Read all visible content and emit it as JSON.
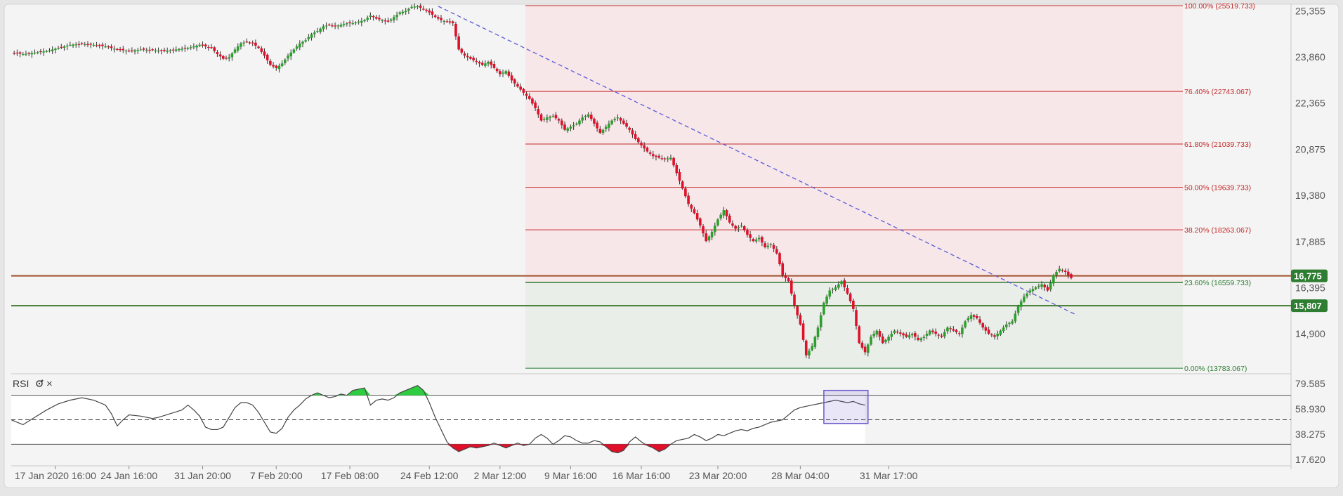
{
  "chart_data": {
    "type": "candlestick",
    "instrument": "",
    "y_axis": {
      "ticks": [
        25355,
        23860,
        22365,
        20875,
        19380,
        17885,
        16395,
        14900
      ],
      "labels": [
        "25,355",
        "23,860",
        "22,365",
        "20,875",
        "19,380",
        "17,885",
        "16,395",
        "14,900"
      ],
      "range": [
        13650,
        25520
      ]
    },
    "x_axis": {
      "labels": [
        "17 Jan 2020 16:00",
        "24 Jan 16:00",
        "31 Jan 20:00",
        "7 Feb 20:00",
        "17 Feb 08:00",
        "24 Feb 12:00",
        "2 Mar 12:00",
        "9 Mar 16:00",
        "16 Mar 16:00",
        "23 Mar 20:00",
        "28 Mar 04:00",
        "31 Mar 17:00"
      ]
    },
    "fibonacci": {
      "levels": [
        {
          "label": "100.00% (25519.733)",
          "pct": 1.0,
          "price": 25519.733
        },
        {
          "label": "76.40% (22743.067)",
          "pct": 0.764,
          "price": 22743.067
        },
        {
          "label": "61.80% (21039.733)",
          "pct": 0.618,
          "price": 21039.733
        },
        {
          "label": "50.00% (19639.733)",
          "pct": 0.5,
          "price": 19639.733
        },
        {
          "label": "38.20% (18263.067)",
          "pct": 0.382,
          "price": 18263.067
        },
        {
          "label": "23.60% (16559.733)",
          "pct": 0.236,
          "price": 16559.733
        },
        {
          "label": "0.00% (13783.067)",
          "pct": 0.0,
          "price": 13783.067
        }
      ],
      "color_upper": "#c62828",
      "color_lower": "#2e7d32"
    },
    "horizontal_lines": [
      {
        "label": "16,775",
        "price": 16775,
        "color": "#a0522d",
        "badge_color": "#2e7d32"
      },
      {
        "label": "15,807",
        "price": 15807,
        "color": "#3f7a2e",
        "badge_color": "#2e7d32"
      }
    ],
    "trendline": {
      "color": "#5b5bd6",
      "style": "dashed"
    },
    "candles": {
      "up_color": "#2ca02c",
      "down_color": "#e0102a",
      "path": [
        [
          0,
          24000
        ],
        [
          4,
          23950
        ],
        [
          8,
          24000
        ],
        [
          12,
          24050
        ],
        [
          16,
          24150
        ],
        [
          20,
          24250
        ],
        [
          24,
          24280
        ],
        [
          28,
          24250
        ],
        [
          32,
          24200
        ],
        [
          36,
          24100
        ],
        [
          40,
          24050
        ],
        [
          44,
          24100
        ],
        [
          48,
          24080
        ],
        [
          52,
          24050
        ],
        [
          56,
          24100
        ],
        [
          60,
          24150
        ],
        [
          64,
          24250
        ],
        [
          68,
          24150
        ],
        [
          70,
          23950
        ],
        [
          72,
          23800
        ],
        [
          74,
          23850
        ],
        [
          76,
          24100
        ],
        [
          78,
          24300
        ],
        [
          80,
          24350
        ],
        [
          82,
          24300
        ],
        [
          84,
          24150
        ],
        [
          86,
          23900
        ],
        [
          88,
          23600
        ],
        [
          90,
          23500
        ],
        [
          92,
          23650
        ],
        [
          94,
          23900
        ],
        [
          96,
          24100
        ],
        [
          98,
          24300
        ],
        [
          100,
          24400
        ],
        [
          102,
          24600
        ],
        [
          104,
          24700
        ],
        [
          106,
          24850
        ],
        [
          108,
          24900
        ],
        [
          110,
          24850
        ],
        [
          112,
          24900
        ],
        [
          114,
          24950
        ],
        [
          116,
          24950
        ],
        [
          118,
          25000
        ],
        [
          120,
          25050
        ],
        [
          122,
          25200
        ],
        [
          124,
          25100
        ],
        [
          126,
          25050
        ],
        [
          128,
          25000
        ],
        [
          130,
          25150
        ],
        [
          132,
          25300
        ],
        [
          134,
          25350
        ],
        [
          136,
          25480
        ],
        [
          138,
          25500
        ],
        [
          140,
          25400
        ],
        [
          142,
          25300
        ],
        [
          144,
          25150
        ],
        [
          146,
          25050
        ],
        [
          150,
          24950
        ],
        [
          152,
          24100
        ],
        [
          154,
          23900
        ],
        [
          156,
          23800
        ],
        [
          158,
          23700
        ],
        [
          160,
          23600
        ],
        [
          162,
          23700
        ],
        [
          164,
          23500
        ],
        [
          166,
          23300
        ],
        [
          168,
          23400
        ],
        [
          170,
          23100
        ],
        [
          172,
          22900
        ],
        [
          174,
          22700
        ],
        [
          176,
          22500
        ],
        [
          178,
          22200
        ],
        [
          180,
          21800
        ],
        [
          182,
          21900
        ],
        [
          184,
          21950
        ],
        [
          186,
          21800
        ],
        [
          188,
          21500
        ],
        [
          190,
          21600
        ],
        [
          192,
          21700
        ],
        [
          194,
          21900
        ],
        [
          196,
          22000
        ],
        [
          198,
          21700
        ],
        [
          200,
          21400
        ],
        [
          202,
          21600
        ],
        [
          204,
          21800
        ],
        [
          206,
          21900
        ],
        [
          208,
          21700
        ],
        [
          210,
          21500
        ],
        [
          212,
          21200
        ],
        [
          214,
          21000
        ],
        [
          216,
          20800
        ],
        [
          218,
          20650
        ],
        [
          220,
          20600
        ],
        [
          222,
          20550
        ],
        [
          224,
          20600
        ],
        [
          230,
          19100
        ],
        [
          232,
          18800
        ],
        [
          234,
          18400
        ],
        [
          236,
          17900
        ],
        [
          238,
          18200
        ],
        [
          240,
          18600
        ],
        [
          242,
          18900
        ],
        [
          244,
          18500
        ],
        [
          246,
          18300
        ],
        [
          248,
          18400
        ],
        [
          250,
          18100
        ],
        [
          252,
          17900
        ],
        [
          254,
          18000
        ],
        [
          256,
          17700
        ],
        [
          258,
          17800
        ],
        [
          260,
          17500
        ],
        [
          262,
          16800
        ],
        [
          264,
          16600
        ],
        [
          266,
          15800
        ],
        [
          268,
          15200
        ],
        [
          270,
          14200
        ],
        [
          272,
          14500
        ],
        [
          274,
          15100
        ],
        [
          276,
          15900
        ],
        [
          278,
          16300
        ],
        [
          280,
          16400
        ],
        [
          282,
          16600
        ],
        [
          284,
          16200
        ],
        [
          286,
          15700
        ],
        [
          288,
          14600
        ],
        [
          290,
          14300
        ],
        [
          292,
          14800
        ],
        [
          294,
          15000
        ],
        [
          296,
          14600
        ],
        [
          298,
          14800
        ],
        [
          300,
          15000
        ],
        [
          302,
          14900
        ],
        [
          304,
          14800
        ],
        [
          306,
          14900
        ],
        [
          308,
          14700
        ],
        [
          310,
          14800
        ],
        [
          312,
          15000
        ],
        [
          314,
          14900
        ],
        [
          316,
          14800
        ],
        [
          318,
          15100
        ],
        [
          320,
          15000
        ],
        [
          322,
          14900
        ],
        [
          324,
          15300
        ],
        [
          326,
          15500
        ],
        [
          328,
          15400
        ],
        [
          330,
          15100
        ],
        [
          332,
          14900
        ],
        [
          334,
          14800
        ],
        [
          336,
          15000
        ],
        [
          338,
          15200
        ],
        [
          340,
          15300
        ],
        [
          342,
          15800
        ],
        [
          344,
          16100
        ],
        [
          346,
          16300
        ],
        [
          348,
          16400
        ],
        [
          350,
          16500
        ],
        [
          352,
          16300
        ],
        [
          354,
          16800
        ],
        [
          356,
          17000
        ],
        [
          358,
          16900
        ],
        [
          360,
          16700
        ]
      ]
    },
    "rsi": {
      "label": "RSI",
      "y_ticks": [
        79.585,
        58.93,
        38.275,
        17.62
      ],
      "y_labels": [
        "79.585",
        "58.930",
        "38.275",
        "17.620"
      ],
      "range": [
        13,
        83
      ],
      "overbought": 70,
      "oversold": 30,
      "midline": 50,
      "overbought_fill": "#2ecc40",
      "oversold_fill": "#e0102a",
      "values": [
        [
          0,
          50
        ],
        [
          4,
          46
        ],
        [
          8,
          52
        ],
        [
          12,
          58
        ],
        [
          16,
          63
        ],
        [
          20,
          66
        ],
        [
          24,
          68
        ],
        [
          28,
          66
        ],
        [
          32,
          62
        ],
        [
          34,
          55
        ],
        [
          36,
          45
        ],
        [
          38,
          50
        ],
        [
          40,
          54
        ],
        [
          44,
          53
        ],
        [
          48,
          51
        ],
        [
          50,
          52
        ],
        [
          54,
          55
        ],
        [
          58,
          58
        ],
        [
          60,
          62
        ],
        [
          62,
          58
        ],
        [
          64,
          53
        ],
        [
          66,
          44
        ],
        [
          68,
          42
        ],
        [
          70,
          42
        ],
        [
          72,
          44
        ],
        [
          74,
          52
        ],
        [
          76,
          60
        ],
        [
          78,
          64
        ],
        [
          80,
          64
        ],
        [
          82,
          62
        ],
        [
          84,
          56
        ],
        [
          86,
          48
        ],
        [
          88,
          40
        ],
        [
          90,
          39
        ],
        [
          92,
          43
        ],
        [
          94,
          52
        ],
        [
          96,
          58
        ],
        [
          98,
          62
        ],
        [
          100,
          67
        ],
        [
          102,
          70
        ],
        [
          104,
          72
        ],
        [
          106,
          70
        ],
        [
          108,
          68
        ],
        [
          110,
          69
        ],
        [
          112,
          71
        ],
        [
          114,
          70
        ],
        [
          116,
          74
        ],
        [
          118,
          75
        ],
        [
          120,
          76
        ],
        [
          122,
          62
        ],
        [
          124,
          66
        ],
        [
          126,
          67
        ],
        [
          128,
          66
        ],
        [
          130,
          68
        ],
        [
          132,
          72
        ],
        [
          134,
          74
        ],
        [
          136,
          76
        ],
        [
          138,
          78
        ],
        [
          140,
          74
        ],
        [
          142,
          64
        ],
        [
          144,
          52
        ],
        [
          146,
          42
        ],
        [
          148,
          32
        ],
        [
          150,
          27
        ],
        [
          152,
          24
        ],
        [
          154,
          26
        ],
        [
          156,
          28
        ],
        [
          158,
          27
        ],
        [
          160,
          28
        ],
        [
          162,
          29
        ],
        [
          164,
          31
        ],
        [
          166,
          29
        ],
        [
          168,
          27
        ],
        [
          170,
          29
        ],
        [
          172,
          31
        ],
        [
          174,
          29
        ],
        [
          176,
          30
        ],
        [
          178,
          35
        ],
        [
          180,
          38
        ],
        [
          182,
          35
        ],
        [
          184,
          30
        ],
        [
          186,
          33
        ],
        [
          188,
          37
        ],
        [
          190,
          36
        ],
        [
          192,
          33
        ],
        [
          194,
          31
        ],
        [
          196,
          31
        ],
        [
          198,
          33
        ],
        [
          200,
          32
        ],
        [
          202,
          28
        ],
        [
          204,
          24
        ],
        [
          206,
          23
        ],
        [
          208,
          25
        ],
        [
          210,
          32
        ],
        [
          212,
          36
        ],
        [
          214,
          32
        ],
        [
          216,
          29
        ],
        [
          218,
          27
        ],
        [
          220,
          24
        ],
        [
          222,
          26
        ],
        [
          224,
          30
        ],
        [
          226,
          33
        ],
        [
          228,
          34
        ],
        [
          230,
          35
        ],
        [
          232,
          38
        ],
        [
          234,
          36
        ],
        [
          236,
          33
        ],
        [
          238,
          35
        ],
        [
          240,
          38
        ],
        [
          242,
          37
        ],
        [
          244,
          39
        ],
        [
          246,
          41
        ],
        [
          248,
          42
        ],
        [
          250,
          41
        ],
        [
          252,
          43
        ],
        [
          254,
          44
        ],
        [
          256,
          46
        ],
        [
          258,
          48
        ],
        [
          260,
          49
        ],
        [
          262,
          50
        ],
        [
          264,
          54
        ],
        [
          266,
          58
        ],
        [
          268,
          60
        ],
        [
          270,
          61
        ],
        [
          272,
          62
        ],
        [
          274,
          63
        ],
        [
          276,
          64
        ],
        [
          278,
          65
        ],
        [
          280,
          66
        ],
        [
          282,
          65
        ],
        [
          284,
          64
        ],
        [
          286,
          65
        ],
        [
          288,
          63
        ],
        [
          290,
          62
        ]
      ],
      "highlight_box": {
        "color": "#6a5acd"
      }
    },
    "grid": true
  }
}
